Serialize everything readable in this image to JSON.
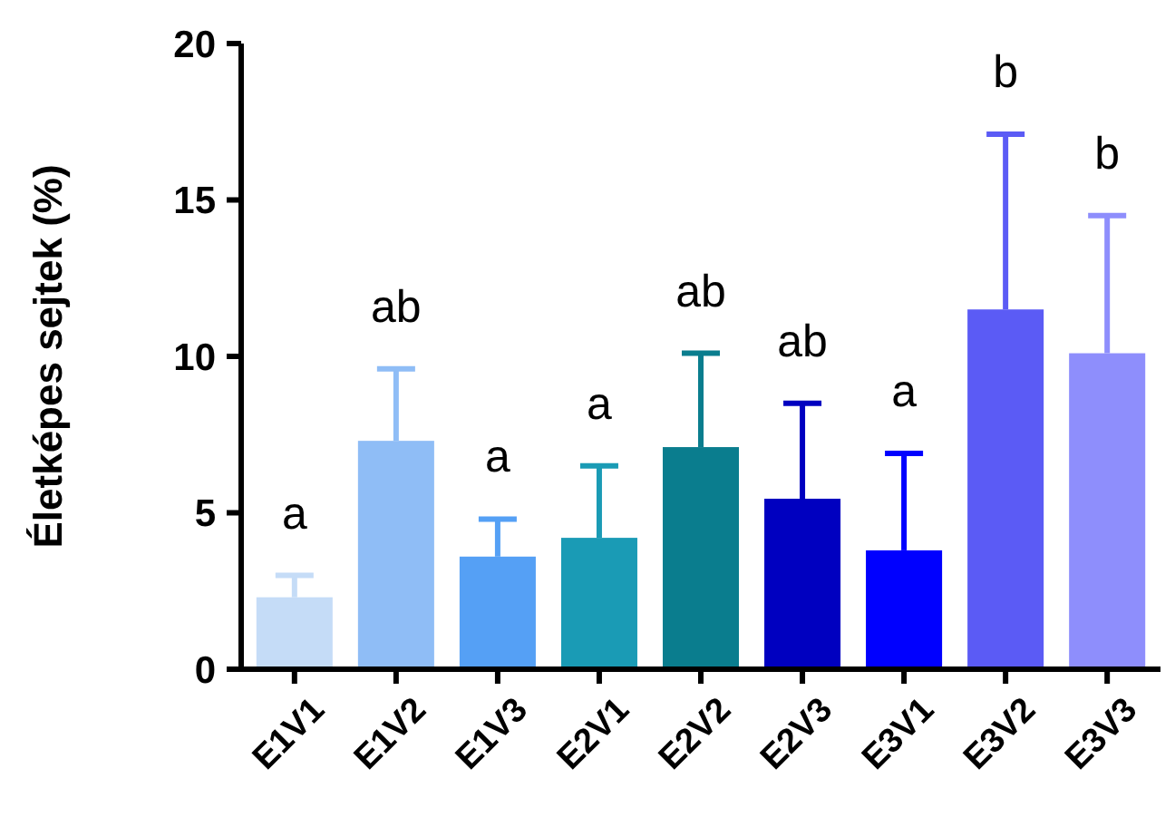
{
  "chart_data": {
    "type": "bar",
    "ylabel": "Életképes sejtek (%)",
    "categories": [
      "E1V1",
      "E1V2",
      "E1V3",
      "E2V1",
      "E2V2",
      "E2V3",
      "E3V1",
      "E3V2",
      "E3V3"
    ],
    "values": [
      2.3,
      7.3,
      3.6,
      4.2,
      7.1,
      5.45,
      3.8,
      11.5,
      10.1
    ],
    "colors": [
      "#c5dcf7",
      "#8fbdf6",
      "#55a0f5",
      "#1a9bb5",
      "#0a7d8e",
      "#0000c0",
      "#0000ff",
      "#5b5bf5",
      "#8e8efc"
    ],
    "errors": [
      [
        2.3,
        3.0
      ],
      [
        7.3,
        9.6
      ],
      [
        3.6,
        4.8
      ],
      [
        4.2,
        6.5
      ],
      [
        7.1,
        10.1
      ],
      [
        5.45,
        8.5
      ],
      [
        3.8,
        6.9
      ],
      [
        11.5,
        17.1
      ],
      [
        10.1,
        14.5
      ]
    ],
    "ylim": [
      0,
      20
    ],
    "yticks": [
      0,
      5,
      10,
      15,
      20
    ],
    "grid": false,
    "annotations": [
      "a",
      "ab",
      "a",
      "a",
      "ab",
      "ab",
      "a",
      "b",
      "b"
    ]
  }
}
